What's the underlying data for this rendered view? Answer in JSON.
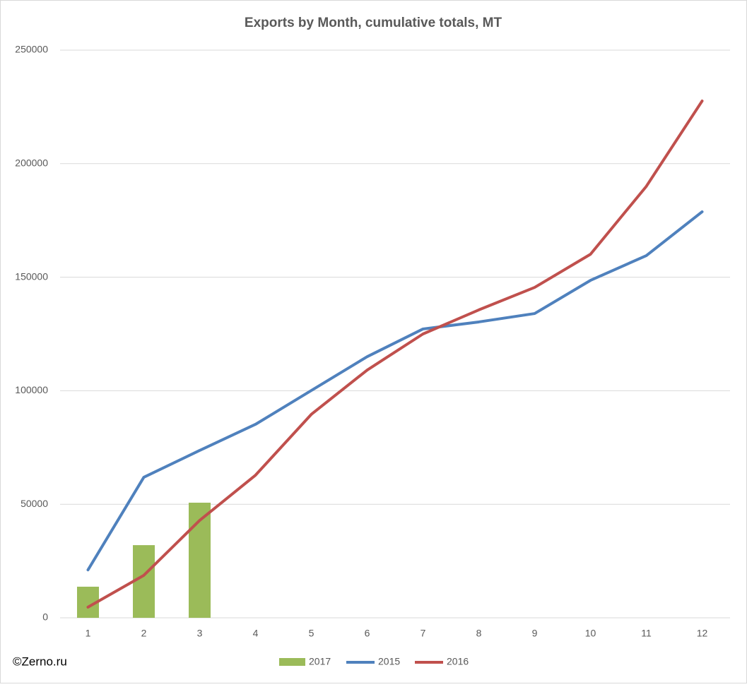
{
  "chart_data": {
    "type": "bar-line",
    "title": "Exports by Month, cumulative totals, MT",
    "source": "©Zerno.ru",
    "categories": [
      "1",
      "2",
      "3",
      "4",
      "5",
      "6",
      "7",
      "8",
      "9",
      "10",
      "11",
      "12"
    ],
    "series": [
      {
        "name": "2017",
        "type": "bar",
        "color": "#9bbb59",
        "values": [
          13700,
          32000,
          50700,
          null,
          null,
          null,
          null,
          null,
          null,
          null,
          null,
          null
        ]
      },
      {
        "name": "2015",
        "type": "line",
        "color": "#4f81bd",
        "values": [
          21100,
          61900,
          73700,
          85200,
          100100,
          115000,
          127200,
          130300,
          134000,
          148600,
          159500,
          178800
        ]
      },
      {
        "name": "2016",
        "type": "line",
        "color": "#c0504d",
        "values": [
          4700,
          18700,
          42900,
          62800,
          89600,
          109100,
          125000,
          135600,
          145500,
          160100,
          190000,
          227600
        ]
      }
    ],
    "ylim": [
      0,
      250000
    ],
    "yticks": [
      0,
      50000,
      100000,
      150000,
      200000,
      250000
    ],
    "grid": true,
    "legend": "bottom"
  }
}
